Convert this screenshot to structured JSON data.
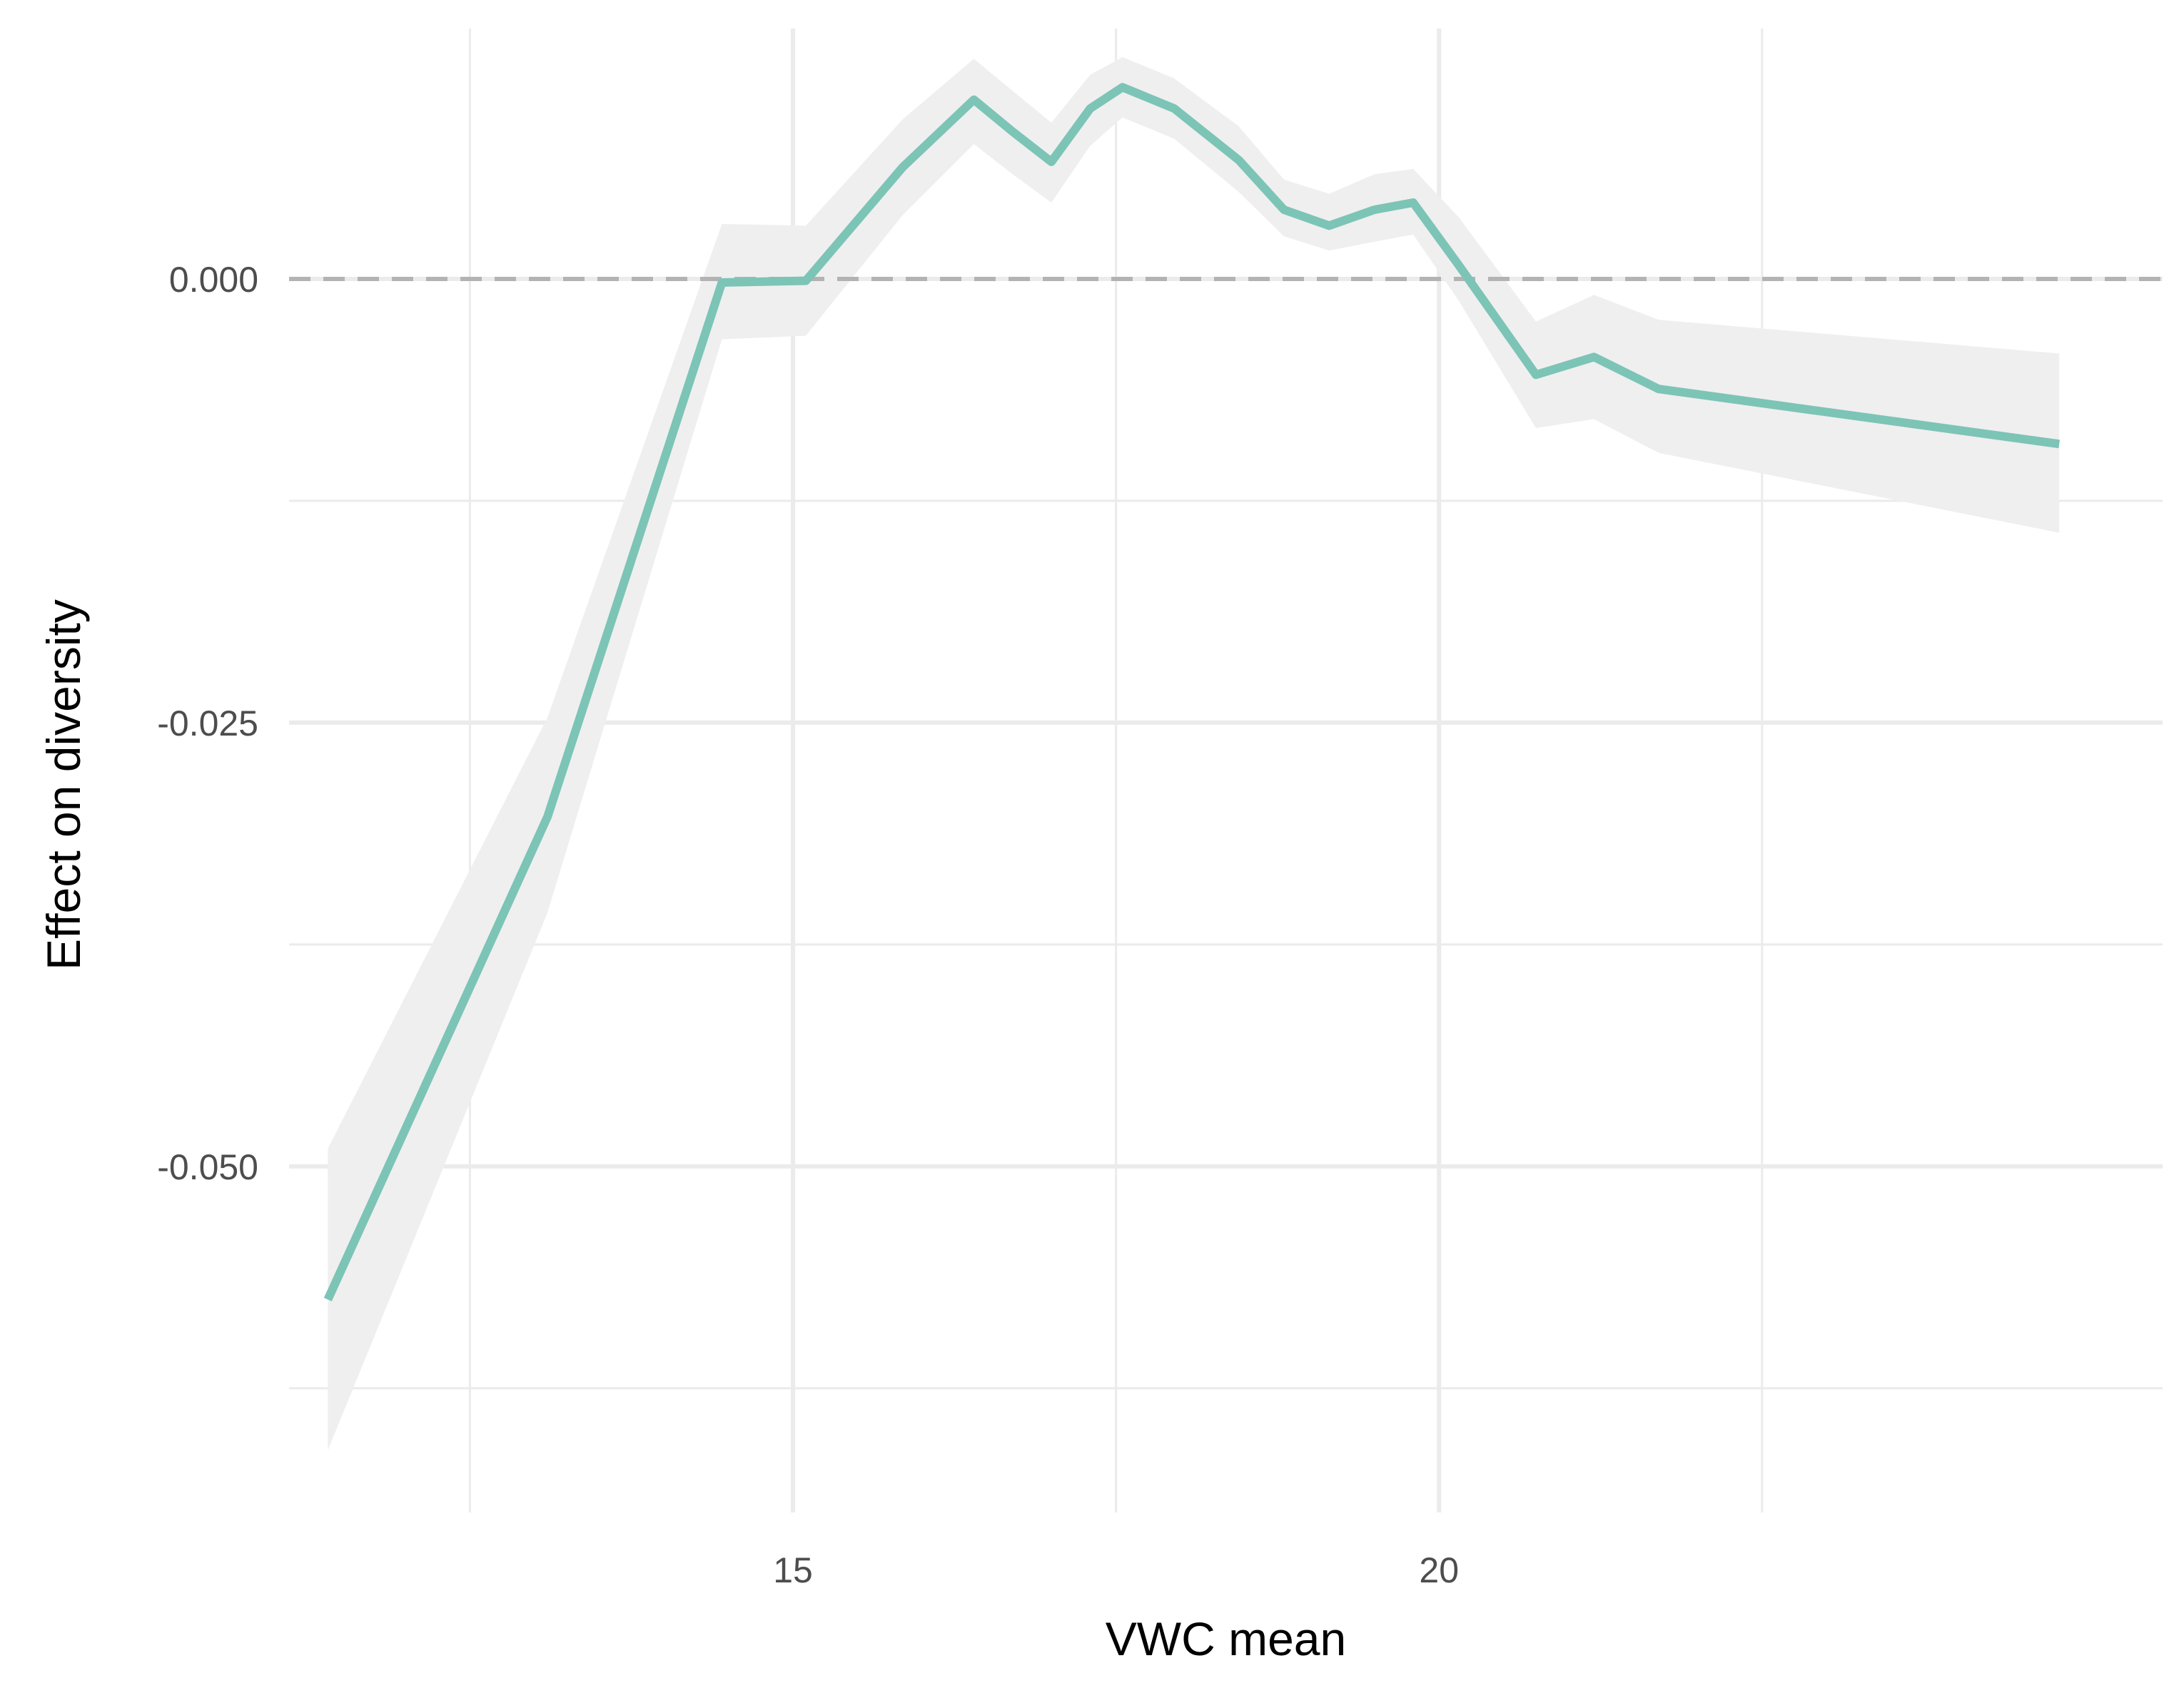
{
  "chart_data": {
    "type": "line",
    "title": "",
    "xlabel": "VWC mean",
    "ylabel": "Effect on diversity",
    "xlim": [
      11.1,
      25.6
    ],
    "ylim": [
      -0.0695,
      0.0125
    ],
    "x_ticks": [
      15,
      20
    ],
    "x_tick_labels": [
      "15",
      "20"
    ],
    "y_ticks": [
      0.0,
      -0.025,
      -0.05
    ],
    "y_tick_labels": [
      "0.000",
      "-0.025",
      "-0.050"
    ],
    "grid": true,
    "reference_line": {
      "y": 0,
      "style": "dashed",
      "color": "#b3b3b3"
    },
    "colors": {
      "line": "#7cc4b6",
      "band": "#efefef",
      "grid": "#ebebeb"
    },
    "series": [
      {
        "points": [
          {
            "x": 11.4,
            "y": -0.0575,
            "lo": -0.066,
            "hi": -0.049
          },
          {
            "x": 13.1,
            "y": -0.0303,
            "lo": -0.0357,
            "hi": -0.0247
          },
          {
            "x": 14.45,
            "y": -0.0002,
            "lo": -0.0034,
            "hi": 0.0031
          },
          {
            "x": 15.1,
            "y": -0.0001,
            "lo": -0.0032,
            "hi": 0.003
          },
          {
            "x": 15.85,
            "y": 0.0063,
            "lo": 0.0036,
            "hi": 0.009
          },
          {
            "x": 16.4,
            "y": 0.0101,
            "lo": 0.0076,
            "hi": 0.0124
          },
          {
            "x": 16.7,
            "y": 0.0083,
            "lo": 0.0059,
            "hi": 0.0106
          },
          {
            "x": 17.0,
            "y": 0.0066,
            "lo": 0.0043,
            "hi": 0.0088
          },
          {
            "x": 17.3,
            "y": 0.0096,
            "lo": 0.0075,
            "hi": 0.0115
          },
          {
            "x": 17.55,
            "y": 0.0108,
            "lo": 0.0091,
            "hi": 0.0125
          },
          {
            "x": 17.95,
            "y": 0.0096,
            "lo": 0.0079,
            "hi": 0.0113
          },
          {
            "x": 18.45,
            "y": 0.0067,
            "lo": 0.0049,
            "hi": 0.0086
          },
          {
            "x": 18.8,
            "y": 0.0039,
            "lo": 0.0024,
            "hi": 0.0056
          },
          {
            "x": 19.15,
            "y": 0.003,
            "lo": 0.0016,
            "hi": 0.0048
          },
          {
            "x": 19.5,
            "y": 0.0039,
            "lo": 0.0021,
            "hi": 0.0059
          },
          {
            "x": 19.8,
            "y": 0.0043,
            "lo": 0.0025,
            "hi": 0.0062
          },
          {
            "x": 20.15,
            "y": 0.0008,
            "lo": -0.0012,
            "hi": 0.0035
          },
          {
            "x": 20.75,
            "y": -0.0054,
            "lo": -0.0084,
            "hi": -0.0024
          },
          {
            "x": 21.2,
            "y": -0.0044,
            "lo": -0.0079,
            "hi": -0.0009
          },
          {
            "x": 21.7,
            "y": -0.0062,
            "lo": -0.0098,
            "hi": -0.0023
          },
          {
            "x": 24.8,
            "y": -0.0093,
            "lo": -0.0143,
            "hi": -0.0042
          }
        ]
      }
    ]
  }
}
